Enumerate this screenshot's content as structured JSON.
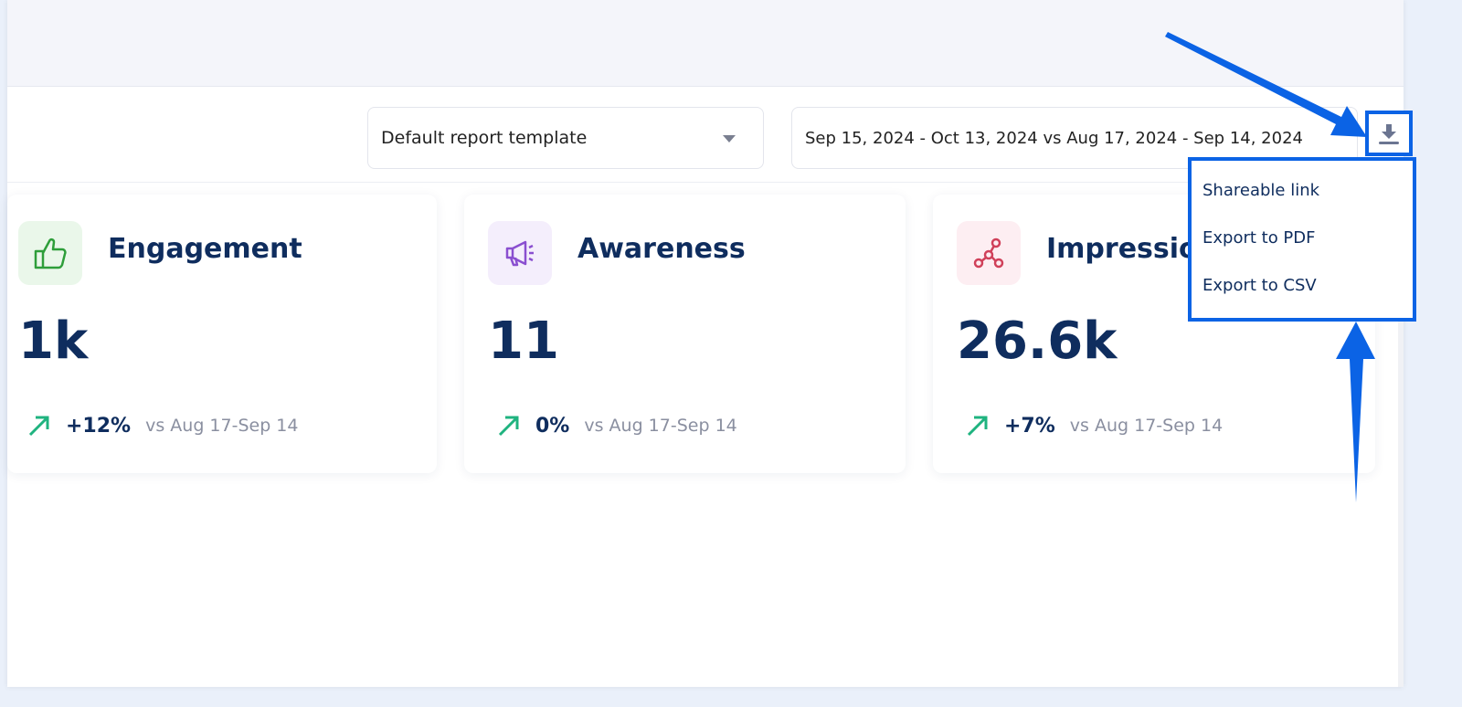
{
  "toolbar": {
    "template_select": "Default report template",
    "date_range": "Sep 15, 2024 - Oct 13, 2024 vs Aug 17, 2024 - Sep 14, 2024",
    "download_icon": "download-icon"
  },
  "export_menu": {
    "items": [
      "Shareable link",
      "Export to PDF",
      "Export to CSV"
    ]
  },
  "cards": [
    {
      "title": "Engagement",
      "value": "1k",
      "change": "+12%",
      "comparison": "vs Aug 17-Sep 14",
      "icon": "thumbs-up-icon",
      "color": "#2e9e3a"
    },
    {
      "title": "Awareness",
      "value": "11",
      "change": "0%",
      "comparison": "vs Aug 17-Sep 14",
      "icon": "megaphone-icon",
      "color": "#8a4fd0"
    },
    {
      "title": "Impressio",
      "value": "26.6k",
      "change": "+7%",
      "comparison": "vs Aug 17-Sep 14",
      "icon": "share-nodes-icon",
      "color": "#d0415a"
    }
  ],
  "colors": {
    "annotation": "#0b63e5",
    "trend_up": "#1fb37f",
    "text": "#0f2d5e"
  }
}
